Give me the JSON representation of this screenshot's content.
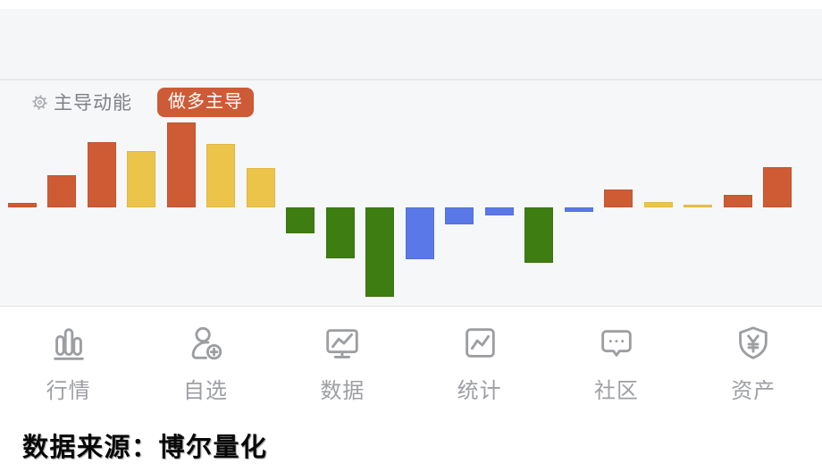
{
  "header": {
    "label": "主导动能",
    "badge": "做多主导"
  },
  "chart_data": {
    "type": "bar",
    "title": "主导动能",
    "annotation": "做多主导",
    "axes_visible": false,
    "x_labels_visible": false,
    "baseline": 0,
    "ylim": [
      -100,
      100
    ],
    "value_unit": "relative momentum, estimated from pixel heights",
    "colors": {
      "orange": "#ce5b33",
      "yellow": "#edc44a",
      "green": "#3e7d12",
      "blue": "#5b78e8"
    },
    "bars": [
      {
        "value": 5,
        "color": "orange"
      },
      {
        "value": 36,
        "color": "orange"
      },
      {
        "value": 73,
        "color": "orange"
      },
      {
        "value": 63,
        "color": "yellow"
      },
      {
        "value": 95,
        "color": "orange"
      },
      {
        "value": 71,
        "color": "yellow"
      },
      {
        "value": 44,
        "color": "yellow"
      },
      {
        "value": -29,
        "color": "green"
      },
      {
        "value": -57,
        "color": "green"
      },
      {
        "value": -100,
        "color": "green"
      },
      {
        "value": -58,
        "color": "blue"
      },
      {
        "value": -19,
        "color": "blue"
      },
      {
        "value": -9,
        "color": "blue"
      },
      {
        "value": -62,
        "color": "green"
      },
      {
        "value": -5,
        "color": "blue"
      },
      {
        "value": 20,
        "color": "orange"
      },
      {
        "value": 6,
        "color": "yellow"
      },
      {
        "value": 3,
        "color": "yellow"
      },
      {
        "value": 14,
        "color": "orange"
      },
      {
        "value": 45,
        "color": "orange"
      }
    ]
  },
  "tabbar": {
    "items": [
      {
        "label": "行情",
        "icon": "bar-chart-icon"
      },
      {
        "label": "自选",
        "icon": "add-user-icon"
      },
      {
        "label": "数据",
        "icon": "monitor-chart-icon"
      },
      {
        "label": "统计",
        "icon": "stats-chart-icon"
      },
      {
        "label": "社区",
        "icon": "chat-bubble-icon"
      },
      {
        "label": "资产",
        "icon": "shield-yen-icon"
      }
    ]
  },
  "source": {
    "text": "数据来源：博尔量化"
  }
}
